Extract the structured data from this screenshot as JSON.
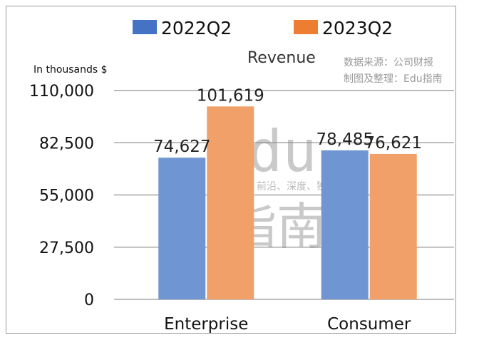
{
  "chart_data": {
    "type": "bar",
    "title": "Revenue",
    "ylabel": "In thousands $",
    "xlabel": "",
    "categories": [
      "Enterprise",
      "Consumer"
    ],
    "series": [
      {
        "name": "2022Q2",
        "color": "#6f95d2",
        "legend_color": "#4472c4",
        "values": [
          74627,
          78485
        ],
        "labels": [
          "74,627",
          "78,485"
        ]
      },
      {
        "name": "2023Q2",
        "color": "#f0a068",
        "legend_color": "#ed7d31",
        "values": [
          101619,
          76621
        ],
        "labels": [
          "101,619",
          "76,621"
        ]
      }
    ],
    "ylim": [
      0,
      110000
    ],
    "yticks": [
      0,
      27500,
      55000,
      82500,
      110000
    ],
    "ytick_labels": [
      "0",
      "27,500",
      "55,000",
      "82,500",
      "110,000"
    ],
    "grid": true,
    "legend_position": "top-center",
    "source_lines": [
      "数据来源：公司财报",
      "制图及整理：Edu指南"
    ],
    "watermark": {
      "big": "Edu",
      "tagline": "教育行业，前沿、深度、独家",
      "han": "指南"
    }
  }
}
